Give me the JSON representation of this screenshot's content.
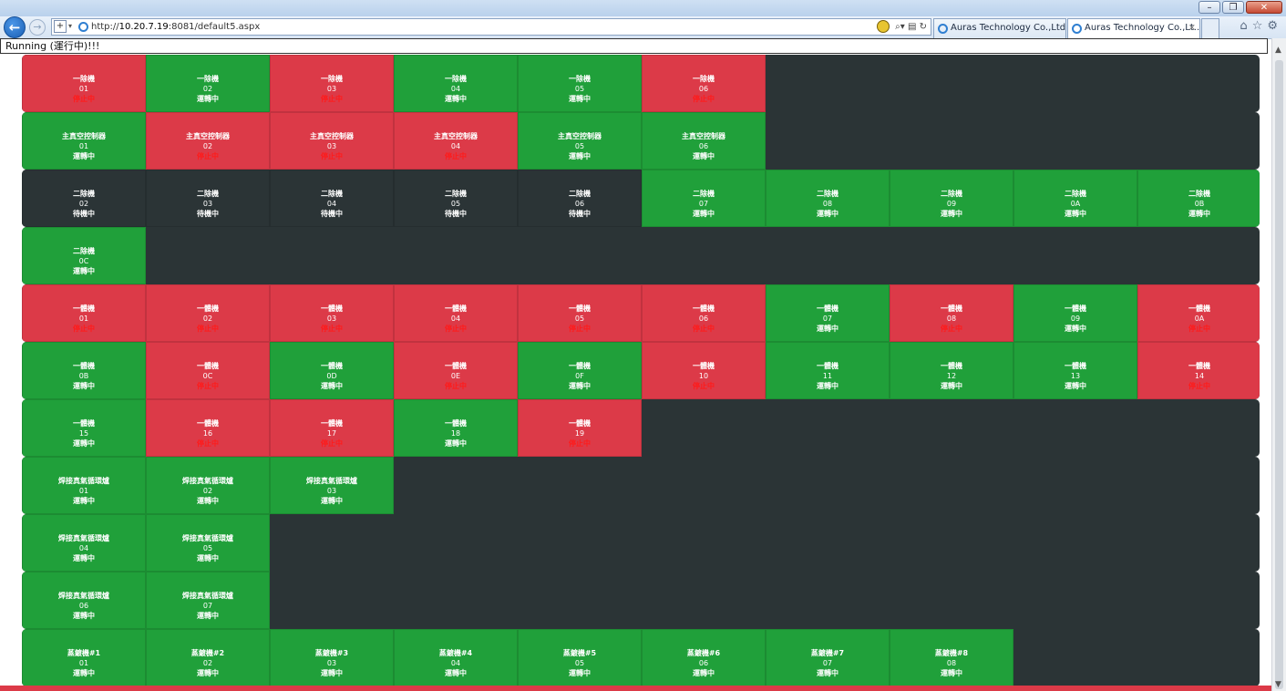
{
  "window": {
    "minimize_icon": "minimize-icon",
    "restore_icon": "restore-icon",
    "close_icon": "close-icon"
  },
  "browser": {
    "url_host": "10.20.7.19",
    "url_rest": ":8081/default5.aspx",
    "url_prefix": "http://",
    "tabs": [
      {
        "label": "Auras Technology Co.,Ltd.A..."
      },
      {
        "label": "Auras Technology Co.,Lt...",
        "close": "×"
      }
    ]
  },
  "status": {
    "text": "Running (運行中)!!!"
  },
  "colors": {
    "running": "#20a03a",
    "stopped": "#dc3a48",
    "idle": "#2b3436",
    "stopped_text": "#ff1a1a"
  },
  "rows": [
    {
      "cells": [
        {
          "name": "一除機",
          "id": "01",
          "status": "停止中",
          "state": "stop"
        },
        {
          "name": "一除機",
          "id": "02",
          "status": "運轉中",
          "state": "run"
        },
        {
          "name": "一除機",
          "id": "03",
          "status": "停止中",
          "state": "stop"
        },
        {
          "name": "一除機",
          "id": "04",
          "status": "運轉中",
          "state": "run"
        },
        {
          "name": "一除機",
          "id": "05",
          "status": "運轉中",
          "state": "run"
        },
        {
          "name": "一除機",
          "id": "06",
          "status": "停止中",
          "state": "stop"
        }
      ]
    },
    {
      "cells": [
        {
          "name": "主真空控制器",
          "id": "01",
          "status": "運轉中",
          "state": "run"
        },
        {
          "name": "主真空控制器",
          "id": "02",
          "status": "停止中",
          "state": "stop"
        },
        {
          "name": "主真空控制器",
          "id": "03",
          "status": "停止中",
          "state": "stop"
        },
        {
          "name": "主真空控制器",
          "id": "04",
          "status": "停止中",
          "state": "stop"
        },
        {
          "name": "主真空控制器",
          "id": "05",
          "status": "運轉中",
          "state": "run"
        },
        {
          "name": "主真空控制器",
          "id": "06",
          "status": "運轉中",
          "state": "run"
        }
      ]
    },
    {
      "cells": [
        {
          "name": "二除機",
          "id": "02",
          "status": "待機中",
          "state": "idle"
        },
        {
          "name": "二除機",
          "id": "03",
          "status": "待機中",
          "state": "idle"
        },
        {
          "name": "二除機",
          "id": "04",
          "status": "待機中",
          "state": "idle"
        },
        {
          "name": "二除機",
          "id": "05",
          "status": "待機中",
          "state": "idle"
        },
        {
          "name": "二除機",
          "id": "06",
          "status": "待機中",
          "state": "idle"
        },
        {
          "name": "二除機",
          "id": "07",
          "status": "運轉中",
          "state": "run"
        },
        {
          "name": "二除機",
          "id": "08",
          "status": "運轉中",
          "state": "run"
        },
        {
          "name": "二除機",
          "id": "09",
          "status": "運轉中",
          "state": "run"
        },
        {
          "name": "二除機",
          "id": "0A",
          "status": "運轉中",
          "state": "run"
        },
        {
          "name": "二除機",
          "id": "0B",
          "status": "運轉中",
          "state": "run"
        }
      ]
    },
    {
      "cells": [
        {
          "name": "二除機",
          "id": "0C",
          "status": "運轉中",
          "state": "run"
        }
      ]
    },
    {
      "cells": [
        {
          "name": "一體機",
          "id": "01",
          "status": "停止中",
          "state": "stop"
        },
        {
          "name": "一體機",
          "id": "02",
          "status": "停止中",
          "state": "stop"
        },
        {
          "name": "一體機",
          "id": "03",
          "status": "停止中",
          "state": "stop"
        },
        {
          "name": "一體機",
          "id": "04",
          "status": "停止中",
          "state": "stop"
        },
        {
          "name": "一體機",
          "id": "05",
          "status": "停止中",
          "state": "stop"
        },
        {
          "name": "一體機",
          "id": "06",
          "status": "停止中",
          "state": "stop"
        },
        {
          "name": "一體機",
          "id": "07",
          "status": "運轉中",
          "state": "run"
        },
        {
          "name": "一體機",
          "id": "08",
          "status": "停止中",
          "state": "stop"
        },
        {
          "name": "一體機",
          "id": "09",
          "status": "運轉中",
          "state": "run"
        },
        {
          "name": "一體機",
          "id": "0A",
          "status": "停止中",
          "state": "stop"
        }
      ]
    },
    {
      "cells": [
        {
          "name": "一體機",
          "id": "0B",
          "status": "運轉中",
          "state": "run"
        },
        {
          "name": "一體機",
          "id": "0C",
          "status": "停止中",
          "state": "stop"
        },
        {
          "name": "一體機",
          "id": "0D",
          "status": "運轉中",
          "state": "run"
        },
        {
          "name": "一體機",
          "id": "0E",
          "status": "停止中",
          "state": "stop"
        },
        {
          "name": "一體機",
          "id": "0F",
          "status": "運轉中",
          "state": "run"
        },
        {
          "name": "一體機",
          "id": "10",
          "status": "停止中",
          "state": "stop"
        },
        {
          "name": "一體機",
          "id": "11",
          "status": "運轉中",
          "state": "run"
        },
        {
          "name": "一體機",
          "id": "12",
          "status": "運轉中",
          "state": "run"
        },
        {
          "name": "一體機",
          "id": "13",
          "status": "運轉中",
          "state": "run"
        },
        {
          "name": "一體機",
          "id": "14",
          "status": "停止中",
          "state": "stop"
        }
      ]
    },
    {
      "cells": [
        {
          "name": "一體機",
          "id": "15",
          "status": "運轉中",
          "state": "run"
        },
        {
          "name": "一體機",
          "id": "16",
          "status": "停止中",
          "state": "stop"
        },
        {
          "name": "一體機",
          "id": "17",
          "status": "停止中",
          "state": "stop"
        },
        {
          "name": "一體機",
          "id": "18",
          "status": "運轉中",
          "state": "run"
        },
        {
          "name": "一體機",
          "id": "19",
          "status": "停止中",
          "state": "stop"
        }
      ]
    },
    {
      "cells": [
        {
          "name": "焊接真氣循環爐",
          "id": "01",
          "status": "運轉中",
          "state": "run"
        },
        {
          "name": "焊接真氣循環爐",
          "id": "02",
          "status": "運轉中",
          "state": "run"
        },
        {
          "name": "焊接真氣循環爐",
          "id": "03",
          "status": "運轉中",
          "state": "run"
        }
      ]
    },
    {
      "cells": [
        {
          "name": "焊接真氣循環爐",
          "id": "04",
          "status": "運轉中",
          "state": "run"
        },
        {
          "name": "焊接真氣循環爐",
          "id": "05",
          "status": "運轉中",
          "state": "run"
        }
      ]
    },
    {
      "cells": [
        {
          "name": "焊接真氣循環爐",
          "id": "06",
          "status": "運轉中",
          "state": "run"
        },
        {
          "name": "焊接真氣循環爐",
          "id": "07",
          "status": "運轉中",
          "state": "run"
        }
      ]
    },
    {
      "cells": [
        {
          "name": "蒸鍍機#1",
          "id": "01",
          "status": "運轉中",
          "state": "run"
        },
        {
          "name": "蒸鍍機#2",
          "id": "02",
          "status": "運轉中",
          "state": "run"
        },
        {
          "name": "蒸鍍機#3",
          "id": "03",
          "status": "運轉中",
          "state": "run"
        },
        {
          "name": "蒸鍍機#4",
          "id": "04",
          "status": "運轉中",
          "state": "run"
        },
        {
          "name": "蒸鍍機#5",
          "id": "05",
          "status": "運轉中",
          "state": "run"
        },
        {
          "name": "蒸鍍機#6",
          "id": "06",
          "status": "運轉中",
          "state": "run"
        },
        {
          "name": "蒸鍍機#7",
          "id": "07",
          "status": "運轉中",
          "state": "run"
        },
        {
          "name": "蒸鍍機#8",
          "id": "08",
          "status": "運轉中",
          "state": "run"
        }
      ]
    }
  ]
}
